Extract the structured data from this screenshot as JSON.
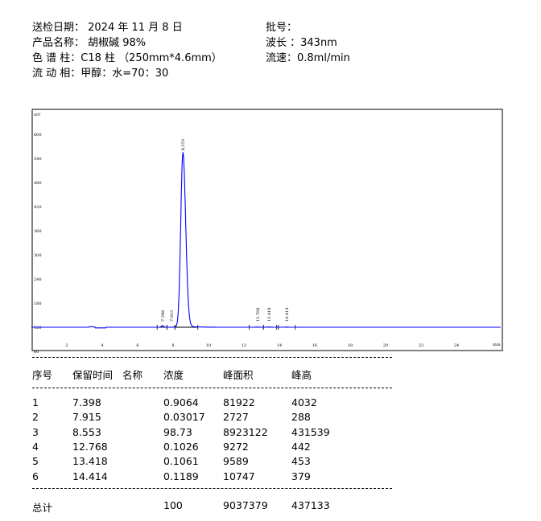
{
  "header": {
    "date": "送检日期：  2024 年 11 月 8 日",
    "batch": "批号：",
    "product": "产品名称：  胡椒碱 98%",
    "wavelength": "波长 ：343nm",
    "column": "色 谱 柱：C18 柱 （250mm*4.6mm）",
    "flow": "流速：0.8ml/min",
    "mobile_phase": "流 动 相：甲醇：水=70：30"
  },
  "chart_data": {
    "type": "line",
    "ylabel": "mV",
    "xlabel": "min",
    "ylim": [
      60,
      640
    ],
    "xlim": [
      0,
      26.5
    ],
    "yticks": [
      "600",
      "540",
      "480",
      "420",
      "360",
      "300",
      "240",
      "180",
      "120",
      "60"
    ],
    "xticks": [
      "2",
      "4",
      "6",
      "8",
      "10",
      "12",
      "14",
      "16",
      "18",
      "20",
      "22",
      "24"
    ],
    "baseline_mV": 120,
    "line_color": "#0000ff",
    "grid": false,
    "peaks": [
      {
        "label": "7.398",
        "rt": 7.398,
        "height_mV": 4.032
      },
      {
        "label": "7.915",
        "rt": 7.915,
        "height_mV": 0.288
      },
      {
        "label": "8.553",
        "rt": 8.553,
        "height_mV": 431.539
      },
      {
        "label": "12.768",
        "rt": 12.768,
        "height_mV": 0.442
      },
      {
        "label": "13.418",
        "rt": 13.418,
        "height_mV": 0.453
      },
      {
        "label": "14.414",
        "rt": 14.414,
        "height_mV": 0.379
      }
    ]
  },
  "table": {
    "headers": [
      "序号",
      "保留时间",
      "名称",
      "浓度",
      "峰面积",
      "峰高"
    ],
    "rows": [
      [
        "1",
        "7.398",
        "",
        "0.9064",
        "81922",
        "4032"
      ],
      [
        "2",
        "7.915",
        "",
        "0.03017",
        "2727",
        "288"
      ],
      [
        "3",
        "8.553",
        "",
        "98.73",
        "8923122",
        "431539"
      ],
      [
        "4",
        "12.768",
        "",
        "0.1026",
        "9272",
        "442"
      ],
      [
        "5",
        "13.418",
        "",
        "0.1061",
        "9589",
        "453"
      ],
      [
        "6",
        "14.414",
        "",
        "0.1189",
        "10747",
        "379"
      ]
    ],
    "total": {
      "label": "总计",
      "concentration": "100",
      "area": "9037379",
      "height": "437133"
    }
  }
}
